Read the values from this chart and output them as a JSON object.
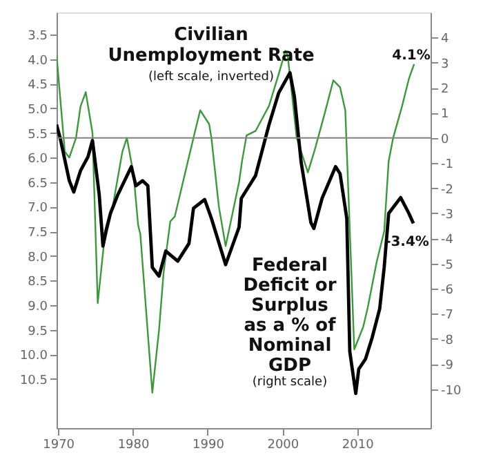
{
  "chart_data": {
    "type": "line",
    "annotations": [
      "Civilian\nUnemployment Rate",
      "(left scale, inverted)",
      "4.1%",
      "-3.4%",
      "Federal\nDeficit or\nSurplus\nas a % of\nNominal\nGDP",
      "(right scale)"
    ],
    "xlim": [
      1969.8,
      2019.8
    ],
    "xticks": [
      1970,
      1980,
      1990,
      2000,
      2010
    ],
    "ylim": [
      11.5,
      3.05
    ],
    "yticks": [
      {
        "value": 3.5,
        "label": "3.5"
      },
      {
        "value": 4,
        "label": "4.0"
      },
      {
        "value": 4.5,
        "label": "4.5"
      },
      {
        "value": 5,
        "label": "5.0"
      },
      {
        "value": 5.5,
        "label": "5.5"
      },
      {
        "value": 6,
        "label": "6.0"
      },
      {
        "value": 6.5,
        "label": "6.5"
      },
      {
        "value": 7,
        "label": "7.0"
      },
      {
        "value": 7.5,
        "label": "7.5"
      },
      {
        "value": 8,
        "label": "8.0"
      },
      {
        "value": 8.5,
        "label": "8.5"
      },
      {
        "value": 9,
        "label": "9.0"
      },
      {
        "value": 9.5,
        "label": "9.5"
      },
      {
        "value": 10,
        "label": "10.0"
      },
      {
        "value": 10.5,
        "label": "10.5"
      }
    ],
    "y2lim": [
      -11.55,
      5.0
    ],
    "y2ticks": [
      4,
      3,
      2,
      1,
      0,
      -1,
      -2,
      -3,
      -4,
      -5,
      -6,
      -7,
      -8,
      -9,
      -10
    ],
    "ref_lines": [
      {
        "axis": "y2",
        "value": 0,
        "color": "#808080"
      }
    ],
    "grid": false,
    "marker": "none",
    "line_style": "solid",
    "series": [
      {
        "axis": "y",
        "color": "#3a9a3a",
        "x": [
          1969.8,
          1970.9,
          1971.5,
          1972.4,
          1973.0,
          1973.7,
          1974.6,
          1975.3,
          1976.1,
          1977.3,
          1978.6,
          1979.2,
          1980.1,
          1980.7,
          1981.0,
          1982.6,
          1983.5,
          1984.1,
          1985.0,
          1985.6,
          1988.1,
          1989.0,
          1990.2,
          1990.5,
          1991.5,
          1992.4,
          1994.2,
          1994.6,
          1995.2,
          1996.4,
          1998.2,
          1999.5,
          2000.4,
          2000.7,
          2001.9,
          2003.4,
          2004.4,
          2005.6,
          2006.8,
          2007.7,
          2008.4,
          2009.6,
          2010.8,
          2011.4,
          2012.6,
          2013.6,
          2014.2,
          2014.8,
          2016.0,
          2016.9,
          2017.6
        ],
        "values": [
          3.92,
          5.88,
          6.0,
          5.6,
          4.96,
          4.67,
          5.5,
          8.96,
          7.8,
          7.0,
          5.88,
          5.6,
          6.35,
          7.37,
          7.56,
          10.78,
          9.5,
          8.35,
          7.3,
          7.2,
          5.6,
          5.04,
          5.32,
          5.6,
          7.0,
          7.8,
          6.5,
          6.07,
          5.55,
          5.46,
          4.95,
          4.3,
          3.83,
          3.92,
          5.6,
          6.3,
          5.8,
          5.13,
          4.43,
          4.57,
          5.04,
          9.9,
          9.44,
          9.05,
          8.12,
          7.5,
          6.07,
          5.6,
          4.95,
          4.4,
          4.1
        ]
      },
      {
        "axis": "y2",
        "color": "#000000",
        "x": [
          1969.8,
          1970.3,
          1971.5,
          1972.1,
          1973.0,
          1974.0,
          1974.6,
          1975.5,
          1976.0,
          1976.4,
          1977.0,
          1978.0,
          1979.8,
          1980.4,
          1981.3,
          1982.0,
          1982.6,
          1983.5,
          1984.4,
          1986.0,
          1987.5,
          1988.1,
          1989.6,
          1990.5,
          1992.4,
          1994.2,
          1994.5,
          1996.4,
          1998.2,
          1999.5,
          2001.0,
          2001.6,
          2002.5,
          2003.8,
          2004.2,
          2005.3,
          2007.1,
          2007.7,
          2008.6,
          2009.0,
          2009.8,
          2010.2,
          2011.1,
          2012.0,
          2013.0,
          2013.6,
          2014.2,
          2015.8,
          2016.9,
          2017.5
        ],
        "values": [
          0.53,
          -0.03,
          -1.7,
          -2.15,
          -1.3,
          -0.75,
          -0.1,
          -2.25,
          -4.3,
          -3.7,
          -3.0,
          -2.25,
          -1.14,
          -1.9,
          -1.7,
          -1.9,
          -5.15,
          -5.5,
          -4.5,
          -4.9,
          -4.2,
          -2.8,
          -2.45,
          -3.2,
          -5.04,
          -3.55,
          -2.4,
          -1.5,
          0.53,
          1.8,
          2.6,
          1.64,
          -0.97,
          -3.37,
          -3.6,
          -2.4,
          -1.14,
          -1.42,
          -3.2,
          -8.5,
          -10.17,
          -9.2,
          -8.8,
          -7.94,
          -6.8,
          -5.15,
          -3.0,
          -2.37,
          -3.0,
          -3.4
        ]
      }
    ]
  }
}
